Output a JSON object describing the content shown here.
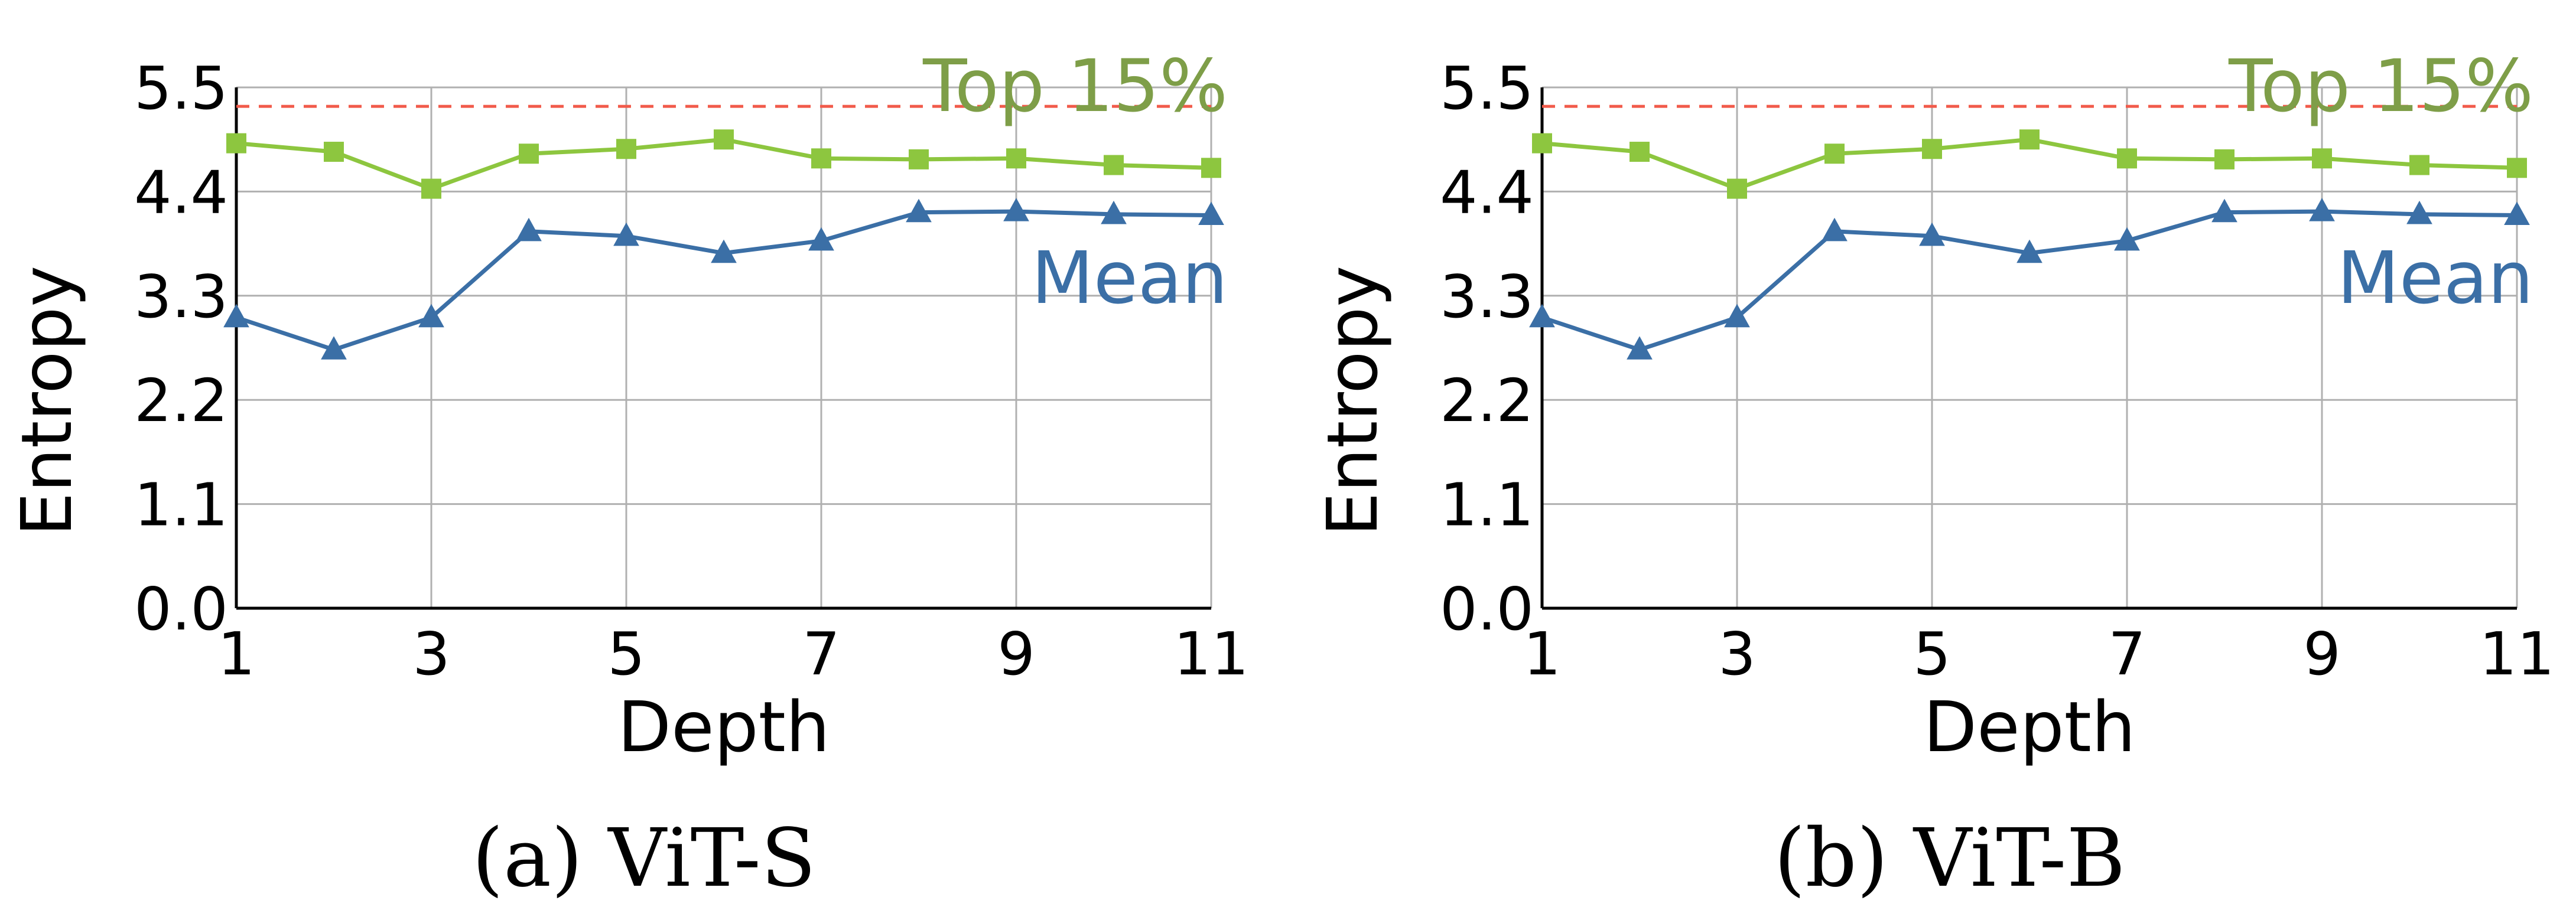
{
  "chart_data": [
    {
      "type": "line",
      "caption": "(a) ViT-S",
      "xlabel": "Depth",
      "ylabel": "Entropy",
      "x": [
        1,
        2,
        3,
        4,
        5,
        6,
        7,
        8,
        9,
        10,
        11
      ],
      "xlim": [
        1,
        11
      ],
      "xticks": [
        1,
        3,
        5,
        7,
        9,
        11
      ],
      "ylim": [
        0.0,
        5.5
      ],
      "yticks": [
        "0.0",
        "1.1",
        "2.2",
        "3.3",
        "4.4",
        "5.5"
      ],
      "grid": true,
      "series": [
        {
          "name": "Top 15%",
          "color": "#8dc63f",
          "label_color": "#7e9e48",
          "marker": "square",
          "values": [
            4.91,
            4.82,
            4.43,
            4.8,
            4.85,
            4.95,
            4.75,
            4.74,
            4.75,
            4.68,
            4.65
          ]
        },
        {
          "name": "Mean",
          "color": "#3b6fa6",
          "label_color": "#3b6fa6",
          "marker": "triangle",
          "values": [
            3.07,
            2.73,
            3.07,
            3.98,
            3.93,
            3.75,
            3.88,
            4.18,
            4.19,
            4.16,
            4.15
          ]
        }
      ],
      "reference_line": {
        "value": 5.3,
        "color": "#f15a4a",
        "style": "dashed"
      }
    },
    {
      "type": "line",
      "caption": "(b) ViT-B",
      "xlabel": "Depth",
      "ylabel": "Entropy",
      "x": [
        1,
        2,
        3,
        4,
        5,
        6,
        7,
        8,
        9,
        10,
        11
      ],
      "xlim": [
        1,
        11
      ],
      "xticks": [
        1,
        3,
        5,
        7,
        9,
        11
      ],
      "ylim": [
        0.0,
        5.5
      ],
      "yticks": [
        "0.0",
        "1.1",
        "2.2",
        "3.3",
        "4.4",
        "5.5"
      ],
      "grid": true,
      "series": [
        {
          "name": "Top 15%",
          "color": "#8dc63f",
          "label_color": "#7e9e48",
          "marker": "square",
          "values": [
            4.91,
            4.82,
            4.43,
            4.8,
            4.85,
            4.95,
            4.75,
            4.74,
            4.75,
            4.68,
            4.65
          ]
        },
        {
          "name": "Mean",
          "color": "#3b6fa6",
          "label_color": "#3b6fa6",
          "marker": "triangle",
          "values": [
            3.07,
            2.73,
            3.07,
            3.98,
            3.93,
            3.75,
            3.88,
            4.18,
            4.19,
            4.16,
            4.15
          ]
        }
      ],
      "reference_line": {
        "value": 5.3,
        "color": "#f15a4a",
        "style": "dashed"
      }
    }
  ]
}
